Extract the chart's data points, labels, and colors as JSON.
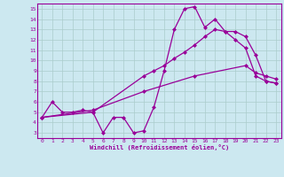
{
  "xlabel": "Windchill (Refroidissement éolien,°C)",
  "xlim": [
    -0.5,
    23.5
  ],
  "ylim": [
    2.5,
    15.5
  ],
  "yticks": [
    3,
    4,
    5,
    6,
    7,
    8,
    9,
    10,
    11,
    12,
    13,
    14,
    15
  ],
  "xticks": [
    0,
    1,
    2,
    3,
    4,
    5,
    6,
    7,
    8,
    9,
    10,
    11,
    12,
    13,
    14,
    15,
    16,
    17,
    18,
    19,
    20,
    21,
    22,
    23
  ],
  "line_color": "#990099",
  "bg_color": "#cce8f0",
  "grid_color": "#aacccc",
  "line1_x": [
    0,
    1,
    2,
    3,
    4,
    5,
    6,
    7,
    8,
    9,
    10,
    11,
    12,
    13,
    14,
    15,
    16,
    17,
    18,
    19,
    20,
    21,
    22,
    23
  ],
  "line1_y": [
    4.5,
    6.0,
    5.0,
    5.0,
    5.2,
    5.0,
    3.0,
    4.5,
    4.5,
    3.0,
    3.2,
    5.5,
    9.0,
    13.0,
    15.0,
    15.2,
    13.2,
    14.0,
    12.8,
    12.0,
    11.2,
    8.5,
    8.0,
    7.8
  ],
  "line2_x": [
    0,
    5,
    10,
    11,
    12,
    13,
    14,
    15,
    16,
    17,
    18,
    19,
    20,
    21,
    22,
    23
  ],
  "line2_y": [
    4.5,
    5.0,
    8.5,
    9.0,
    9.5,
    10.2,
    10.8,
    11.5,
    12.3,
    13.0,
    12.8,
    12.8,
    12.3,
    10.5,
    8.0,
    7.8
  ],
  "line3_x": [
    0,
    5,
    10,
    15,
    20,
    21,
    22,
    23
  ],
  "line3_y": [
    4.5,
    5.2,
    7.0,
    8.5,
    9.5,
    8.8,
    8.5,
    8.2
  ]
}
